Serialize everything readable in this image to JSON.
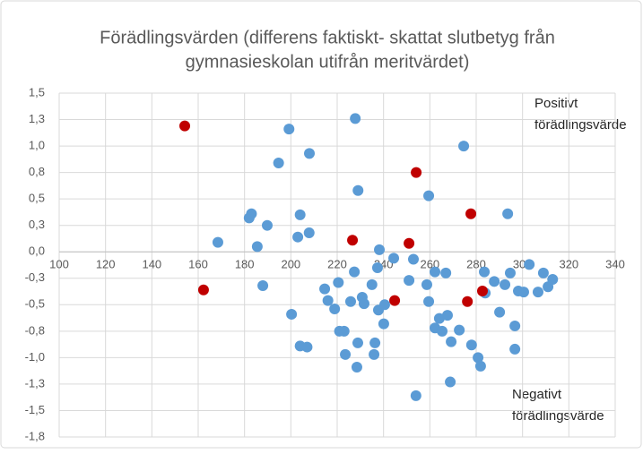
{
  "chart_data": {
    "type": "scatter",
    "title": [
      "Förädlingsvärden (differens faktiskt- skattat slutbetyg från",
      "gymnasieskolan utifrån meritvärdet)"
    ],
    "annotations": [
      [
        "Positivt",
        "förädlingsvärde"
      ],
      [
        "Negativt",
        "förädlingsvärde"
      ]
    ],
    "xlim": [
      100,
      340
    ],
    "xticks": [
      100,
      120,
      140,
      160,
      180,
      200,
      220,
      240,
      260,
      280,
      300,
      320,
      340
    ],
    "ylim": [
      -1.75,
      1.5
    ],
    "yticks": [
      {
        "value": 1.5,
        "label": "1,5"
      },
      {
        "value": 1.25,
        "label": "1,3"
      },
      {
        "value": 1,
        "label": "1,0"
      },
      {
        "value": 0.75,
        "label": "0,8"
      },
      {
        "value": 0.5,
        "label": "0,5"
      },
      {
        "value": 0.25,
        "label": "0,3"
      },
      {
        "value": 0,
        "label": "0,0"
      },
      {
        "value": -0.25,
        "label": "-0,3"
      },
      {
        "value": -0.5,
        "label": "-0,5"
      },
      {
        "value": -0.75,
        "label": "-0,8"
      },
      {
        "value": -1,
        "label": "-1,0"
      },
      {
        "value": -1.25,
        "label": "-1,3"
      },
      {
        "value": -1.5,
        "label": "-1,5"
      },
      {
        "value": -1.75,
        "label": "-1,8"
      }
    ],
    "grid": true,
    "series": [
      {
        "color": "#5b9bd5",
        "x": [
          168.5,
          194.7,
          199.2,
          208,
          227.8,
          182,
          183,
          189.8,
          185.5,
          204,
          203,
          207.9,
          229,
          187.9,
          200.3,
          204,
          207,
          214.6,
          216,
          218.9,
          220.5,
          221,
          223,
          223.5,
          225.8,
          227.4,
          228.5,
          228.9,
          230.8,
          231.6,
          235,
          235.9,
          236.3,
          237.4,
          238.2,
          237.8,
          240.1,
          240.5,
          244.4,
          251,
          252.9,
          254,
          258.7,
          259.5,
          259.5,
          262.2,
          262.2,
          264.1,
          265.3,
          266.9,
          267.6,
          269.2,
          268.8,
          272.7,
          274.6,
          278,
          280.8,
          281.9,
          283.5,
          283.9,
          287.8,
          290.1,
          292.4,
          293.6,
          294.7,
          296.7,
          296.7,
          298.2,
          300.5,
          302.9,
          306.7,
          309,
          311,
          313
        ],
        "y": [
          0.09,
          0.84,
          1.16,
          0.93,
          1.26,
          0.32,
          0.36,
          0.25,
          0.05,
          0.35,
          0.14,
          0.18,
          0.58,
          -0.32,
          -0.59,
          -0.89,
          -0.9,
          -0.35,
          -0.46,
          -0.54,
          -0.29,
          -0.75,
          -0.75,
          -0.97,
          -0.47,
          -0.19,
          -1.09,
          -0.86,
          -0.43,
          -0.49,
          -0.31,
          -0.97,
          -0.86,
          -0.15,
          0.02,
          -0.55,
          -0.68,
          -0.5,
          -0.06,
          -0.27,
          -0.07,
          -1.36,
          -0.31,
          0.53,
          -0.47,
          -0.19,
          -0.72,
          -0.63,
          -0.75,
          -0.2,
          -0.6,
          -0.85,
          -1.23,
          -0.74,
          1.0,
          -0.88,
          -1.0,
          -1.08,
          -0.19,
          -0.39,
          -0.28,
          -0.57,
          -0.31,
          0.36,
          -0.2,
          -0.7,
          -0.92,
          -0.37,
          -0.38,
          -0.12,
          -0.38,
          -0.2,
          -0.33,
          -0.26
        ]
      },
      {
        "color": "#c00000",
        "x": [
          154.2,
          162.3,
          226.6,
          251,
          244.8,
          254.1,
          277.7,
          276.2,
          282.7
        ],
        "y": [
          1.19,
          -0.36,
          0.11,
          0.08,
          -0.46,
          0.75,
          0.36,
          -0.47,
          -0.37
        ]
      }
    ]
  }
}
